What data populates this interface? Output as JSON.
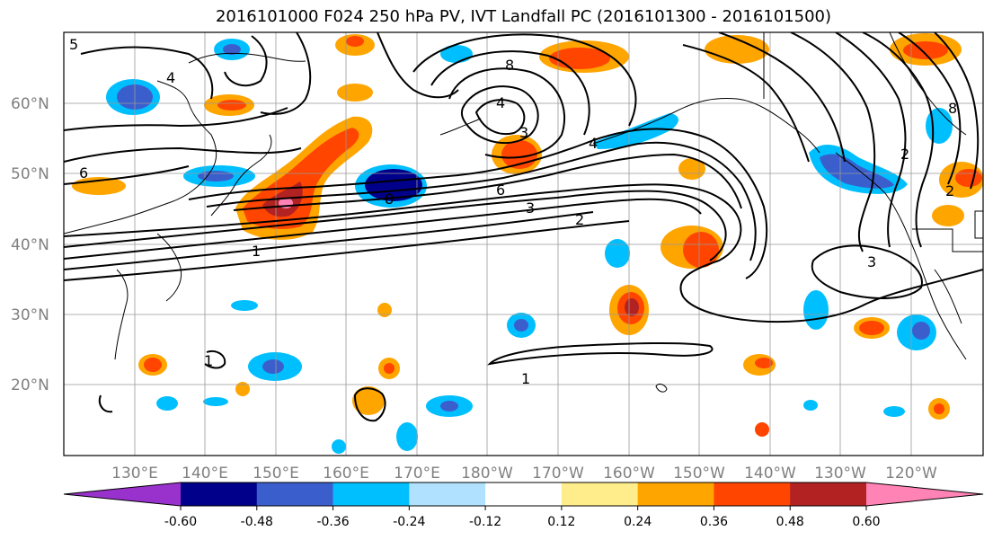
{
  "title": "2016101000 F024 250 hPa PV, IVT Landfall PC (2016101300 - 2016101500)",
  "lat_labels": [
    "60°N",
    "50°N",
    "40°N",
    "30°N",
    "20°N"
  ],
  "lon_labels": [
    "130°E",
    "140°E",
    "150°E",
    "160°E",
    "170°E",
    "180°W",
    "170°W",
    "160°W",
    "150°W",
    "140°W",
    "130°W",
    "120°W"
  ],
  "colorbar": {
    "colors": [
      "#9932cc",
      "#00008b",
      "#3a5fcd",
      "#00bfff",
      "#b0e2ff",
      "#ffffff",
      "#ffec8b",
      "#ffa500",
      "#ff4500",
      "#b22222",
      "#ff83b4"
    ],
    "tick_labels": [
      "-0.60",
      "-0.48",
      "-0.36",
      "-0.24",
      "-0.12",
      "0.12",
      "0.24",
      "0.36",
      "0.48",
      "0.60"
    ]
  },
  "contour_labels": [
    "1",
    "2",
    "3",
    "6",
    "8",
    "4",
    "3",
    "2",
    "1",
    "6",
    "4",
    "8",
    "5",
    "2",
    "1",
    "3",
    "4",
    "8"
  ]
}
